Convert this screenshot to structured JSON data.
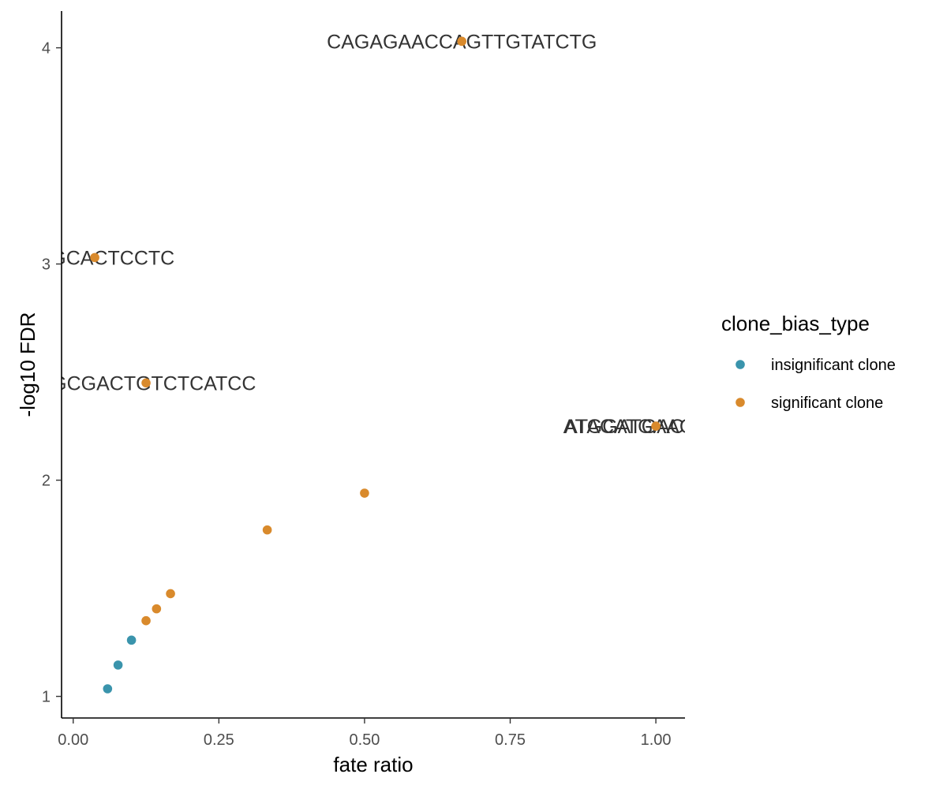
{
  "chart_data": {
    "type": "scatter",
    "title": "",
    "xlabel": "fate ratio",
    "ylabel": "-log10 FDR",
    "xlim": [
      -0.02,
      1.05
    ],
    "ylim": [
      0.9,
      4.17
    ],
    "x_ticks": [
      0.0,
      0.25,
      0.5,
      0.75,
      1.0
    ],
    "x_tick_labels": [
      "0.00",
      "0.25",
      "0.50",
      "0.75",
      "1.00"
    ],
    "y_ticks": [
      1,
      2,
      3,
      4
    ],
    "y_tick_labels": [
      "1",
      "2",
      "3",
      "4"
    ],
    "grid": false,
    "legend": {
      "title": "clone_bias_type",
      "placement": "right",
      "entries": [
        {
          "label": "insignificant clone",
          "color": "#3A94AC"
        },
        {
          "label": "significant clone",
          "color": "#D98A2C"
        }
      ]
    },
    "series": [
      {
        "name": "insignificant clone",
        "color": "#3A94AC",
        "points": [
          {
            "x": 0.059,
            "y": 1.035
          },
          {
            "x": 0.077,
            "y": 1.145
          },
          {
            "x": 0.1,
            "y": 1.26
          }
        ]
      },
      {
        "name": "significant clone",
        "color": "#D98A2C",
        "points": [
          {
            "x": 0.125,
            "y": 1.35
          },
          {
            "x": 0.143,
            "y": 1.405
          },
          {
            "x": 0.167,
            "y": 1.475
          },
          {
            "x": 0.333,
            "y": 1.77
          },
          {
            "x": 0.5,
            "y": 1.94
          },
          {
            "x": 1.0,
            "y": 2.25
          },
          {
            "x": 0.125,
            "y": 2.45
          },
          {
            "x": 0.037,
            "y": 3.03
          },
          {
            "x": 0.667,
            "y": 4.03
          }
        ]
      }
    ],
    "annotations": [
      {
        "text": "CAGAGAACCAGTTGTATCTG",
        "x": 0.667,
        "y": 4.03
      },
      {
        "text": "TTAGCACTCCTC",
        "x": 0.037,
        "y": 3.03
      },
      {
        "text": "GGCGACTGTCTCATCC",
        "x": 0.125,
        "y": 2.45
      },
      {
        "text": "ATACATGAAGTCAA",
        "x": 1.0,
        "y": 2.25
      },
      {
        "text": "ATGGATGACTGTAA",
        "x": 1.0,
        "y": 2.25
      }
    ]
  }
}
